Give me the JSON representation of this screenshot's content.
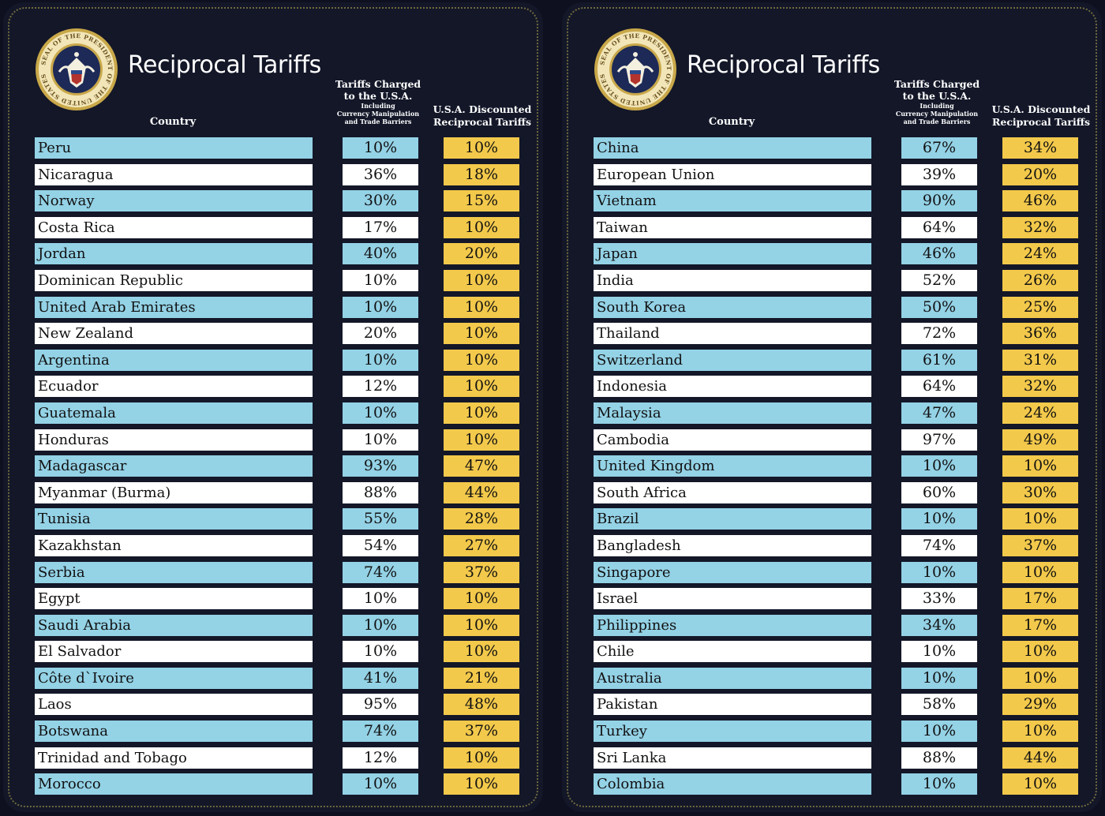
{
  "colors": {
    "background": "#0e1020",
    "panel": "#131728",
    "row_blue": "#94d2e6",
    "row_white": "#ffffff",
    "discount_yellow": "#f3c94b",
    "seal_gold": "#c9a84a"
  },
  "seal": {
    "icon": "presidential-seal-icon",
    "text": "SEAL OF THE PRESIDENT OF THE UNITED STATES"
  },
  "headers": {
    "title": "Reciprocal Tariffs",
    "country": "Country",
    "charged_line1": "Tariffs Charged",
    "charged_line2": "to the U.S.A.",
    "charged_sub1": "Including",
    "charged_sub2": "Currency Manipulation",
    "charged_sub3": "and Trade Barriers",
    "discount_line1": "U.S.A. Discounted",
    "discount_line2": "Reciprocal Tariffs"
  },
  "tables": [
    {
      "rows": [
        {
          "country": "Peru",
          "charged": "10%",
          "discounted": "10%"
        },
        {
          "country": "Nicaragua",
          "charged": "36%",
          "discounted": "18%"
        },
        {
          "country": "Norway",
          "charged": "30%",
          "discounted": "15%"
        },
        {
          "country": "Costa Rica",
          "charged": "17%",
          "discounted": "10%"
        },
        {
          "country": "Jordan",
          "charged": "40%",
          "discounted": "20%"
        },
        {
          "country": "Dominican Republic",
          "charged": "10%",
          "discounted": "10%"
        },
        {
          "country": "United Arab Emirates",
          "charged": "10%",
          "discounted": "10%"
        },
        {
          "country": "New Zealand",
          "charged": "20%",
          "discounted": "10%"
        },
        {
          "country": "Argentina",
          "charged": "10%",
          "discounted": "10%"
        },
        {
          "country": "Ecuador",
          "charged": "12%",
          "discounted": "10%"
        },
        {
          "country": "Guatemala",
          "charged": "10%",
          "discounted": "10%"
        },
        {
          "country": "Honduras",
          "charged": "10%",
          "discounted": "10%"
        },
        {
          "country": "Madagascar",
          "charged": "93%",
          "discounted": "47%"
        },
        {
          "country": "Myanmar (Burma)",
          "charged": "88%",
          "discounted": "44%"
        },
        {
          "country": "Tunisia",
          "charged": "55%",
          "discounted": "28%"
        },
        {
          "country": "Kazakhstan",
          "charged": "54%",
          "discounted": "27%"
        },
        {
          "country": "Serbia",
          "charged": "74%",
          "discounted": "37%"
        },
        {
          "country": "Egypt",
          "charged": "10%",
          "discounted": "10%"
        },
        {
          "country": "Saudi Arabia",
          "charged": "10%",
          "discounted": "10%"
        },
        {
          "country": "El Salvador",
          "charged": "10%",
          "discounted": "10%"
        },
        {
          "country": "Côte d`Ivoire",
          "charged": "41%",
          "discounted": "21%"
        },
        {
          "country": "Laos",
          "charged": "95%",
          "discounted": "48%"
        },
        {
          "country": "Botswana",
          "charged": "74%",
          "discounted": "37%"
        },
        {
          "country": "Trinidad and Tobago",
          "charged": "12%",
          "discounted": "10%"
        },
        {
          "country": "Morocco",
          "charged": "10%",
          "discounted": "10%"
        }
      ]
    },
    {
      "rows": [
        {
          "country": "China",
          "charged": "67%",
          "discounted": "34%"
        },
        {
          "country": "European Union",
          "charged": "39%",
          "discounted": "20%"
        },
        {
          "country": "Vietnam",
          "charged": "90%",
          "discounted": "46%"
        },
        {
          "country": "Taiwan",
          "charged": "64%",
          "discounted": "32%"
        },
        {
          "country": "Japan",
          "charged": "46%",
          "discounted": "24%"
        },
        {
          "country": "India",
          "charged": "52%",
          "discounted": "26%"
        },
        {
          "country": "South Korea",
          "charged": "50%",
          "discounted": "25%"
        },
        {
          "country": "Thailand",
          "charged": "72%",
          "discounted": "36%"
        },
        {
          "country": "Switzerland",
          "charged": "61%",
          "discounted": "31%"
        },
        {
          "country": "Indonesia",
          "charged": "64%",
          "discounted": "32%"
        },
        {
          "country": "Malaysia",
          "charged": "47%",
          "discounted": "24%"
        },
        {
          "country": "Cambodia",
          "charged": "97%",
          "discounted": "49%"
        },
        {
          "country": "United Kingdom",
          "charged": "10%",
          "discounted": "10%"
        },
        {
          "country": "South Africa",
          "charged": "60%",
          "discounted": "30%"
        },
        {
          "country": "Brazil",
          "charged": "10%",
          "discounted": "10%"
        },
        {
          "country": "Bangladesh",
          "charged": "74%",
          "discounted": "37%"
        },
        {
          "country": "Singapore",
          "charged": "10%",
          "discounted": "10%"
        },
        {
          "country": "Israel",
          "charged": "33%",
          "discounted": "17%"
        },
        {
          "country": "Philippines",
          "charged": "34%",
          "discounted": "17%"
        },
        {
          "country": "Chile",
          "charged": "10%",
          "discounted": "10%"
        },
        {
          "country": "Australia",
          "charged": "10%",
          "discounted": "10%"
        },
        {
          "country": "Pakistan",
          "charged": "58%",
          "discounted": "29%"
        },
        {
          "country": "Turkey",
          "charged": "10%",
          "discounted": "10%"
        },
        {
          "country": "Sri Lanka",
          "charged": "88%",
          "discounted": "44%"
        },
        {
          "country": "Colombia",
          "charged": "10%",
          "discounted": "10%"
        }
      ]
    }
  ]
}
